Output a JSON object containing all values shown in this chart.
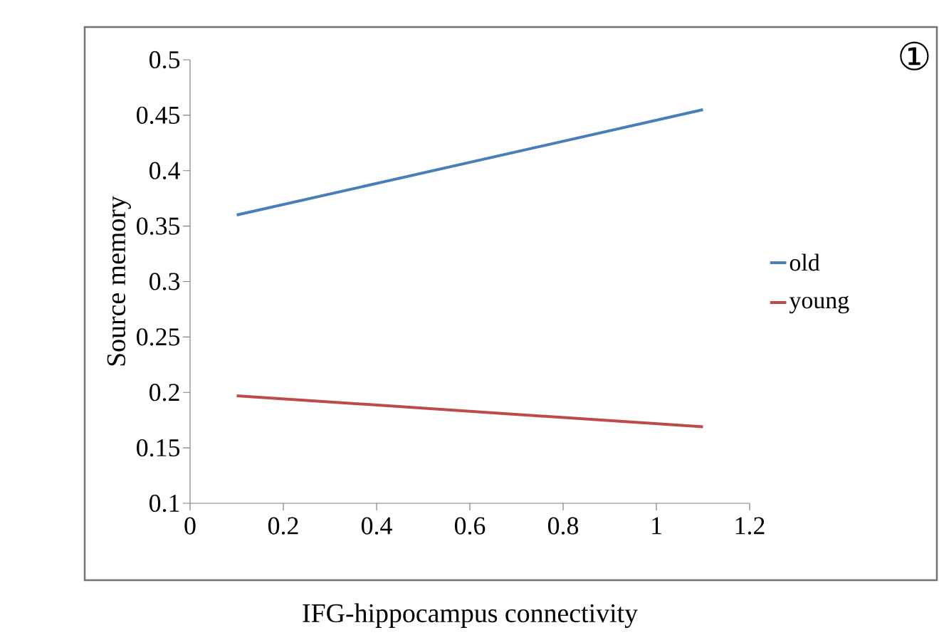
{
  "chart_data": {
    "type": "line",
    "xlabel": "IFG-hippocampus connectivity",
    "ylabel": "Source memory",
    "annotations": [
      "①"
    ],
    "x": [
      0.1,
      1.1
    ],
    "series": [
      {
        "name": "old",
        "color": "#4a7ebb",
        "values": [
          0.36,
          0.455
        ]
      },
      {
        "name": "young",
        "color": "#be4b48",
        "values": [
          0.197,
          0.169
        ]
      }
    ],
    "xlim": [
      0,
      1.2
    ],
    "xticks": [
      0,
      0.2,
      0.4,
      0.6,
      0.8,
      1,
      1.2
    ],
    "ylim": [
      0.1,
      0.5
    ],
    "yticks": [
      0.1,
      0.15,
      0.2,
      0.25,
      0.3,
      0.35,
      0.4,
      0.45,
      0.5
    ],
    "legend": "right",
    "grid": false,
    "marker": "none",
    "line_style": "solid"
  }
}
